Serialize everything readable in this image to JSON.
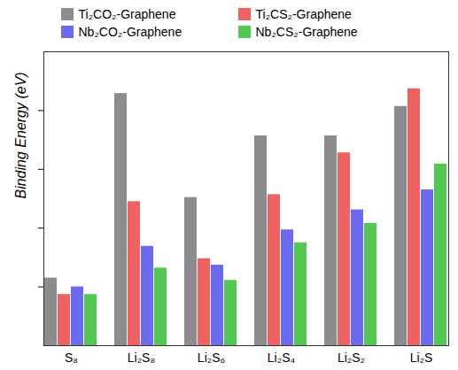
{
  "chart_data": {
    "type": "bar",
    "y_label": "Binding Energy (eV)",
    "categories": [
      "S₈",
      "Li₂S₈",
      "Li₂S₆",
      "Li₂S₄",
      "Li₂S₂",
      "Li₂S"
    ],
    "series": [
      {
        "name": "Ti₂CO₂-Graphene",
        "color": "#8c8c8c",
        "values": [
          1.15,
          4.29,
          2.52,
          3.57,
          3.57,
          4.07
        ]
      },
      {
        "name": "Ti₂CS₂-Graphene",
        "color": "#f06262",
        "values": [
          0.87,
          2.45,
          1.48,
          2.57,
          3.28,
          4.37
        ]
      },
      {
        "name": "Nb₂CO₂-Graphene",
        "color": "#6b6bf0",
        "values": [
          1.0,
          1.69,
          1.37,
          1.97,
          2.31,
          2.65
        ]
      },
      {
        "name": "Nb₂CS₂-Graphene",
        "color": "#52c852",
        "values": [
          0.87,
          1.32,
          1.11,
          1.75,
          2.08,
          3.09
        ]
      }
    ],
    "ylim": [
      0,
      5
    ],
    "yticks": [
      1,
      2,
      3,
      4
    ],
    "tick_labels": "x",
    "grid": false,
    "legend": "top"
  }
}
